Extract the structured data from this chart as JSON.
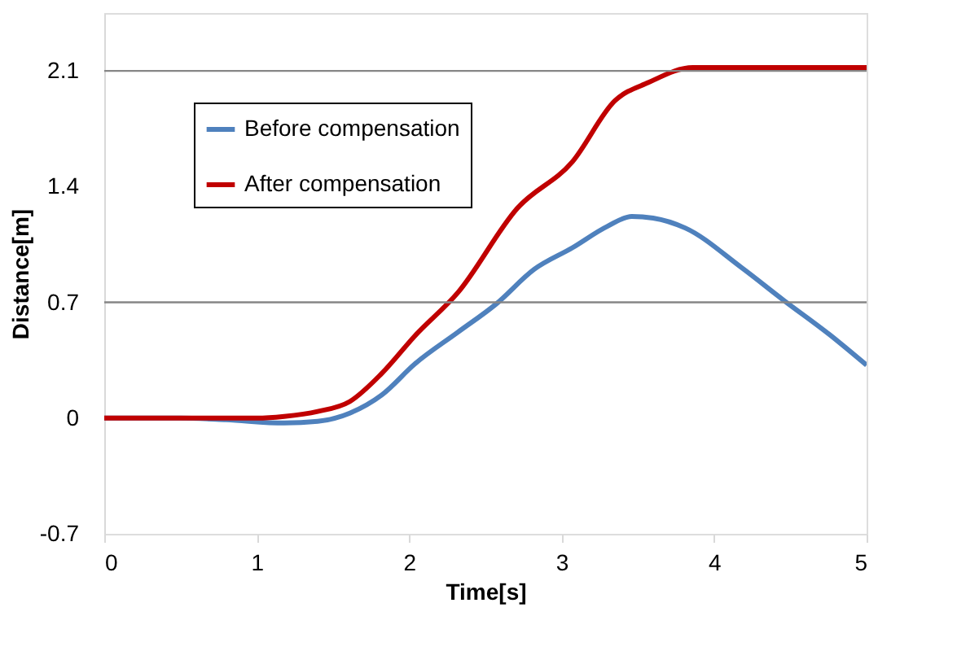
{
  "chart_data": {
    "type": "line",
    "xlabel": "Time[s]",
    "ylabel": "Distance[m]",
    "xlim": [
      0,
      5
    ],
    "xticks": [
      0,
      1,
      2,
      3,
      4,
      5
    ],
    "ylim": [
      -0.7,
      2.45
    ],
    "yticks": [
      -0.7,
      0,
      0.7,
      1.4,
      2.1
    ],
    "legend": "top left",
    "grid": false,
    "line_style": "solid",
    "marker": "none",
    "ref_lines": [
      {
        "axis": "y",
        "value": 0.7,
        "label": null,
        "color": "#868686"
      },
      {
        "axis": "y",
        "value": 2.1,
        "label": null,
        "color": "#868686"
      }
    ],
    "series": [
      {
        "name": "Before compensation",
        "color": "#4f81bd",
        "x": [
          0,
          0.5,
          0.8,
          1.18,
          1.4,
          1.61,
          1.82,
          2.04,
          2.32,
          2.57,
          2.82,
          3.07,
          3.3,
          3.46,
          3.6,
          3.81,
          4.18,
          4.46,
          4.75,
          5
        ],
        "values": [
          0,
          0,
          -0.01,
          -0.03,
          -0.02,
          0.03,
          0.14,
          0.33,
          0.52,
          0.69,
          0.9,
          1.03,
          1.16,
          1.22,
          1.21,
          1.15,
          0.91,
          0.71,
          0.51,
          0.32
        ]
      },
      {
        "name": "After compensation",
        "color": "#c00000",
        "x": [
          0,
          0.5,
          1.0,
          1.18,
          1.4,
          1.61,
          1.82,
          2.04,
          2.32,
          2.71,
          3.07,
          3.35,
          3.57,
          3.86,
          4.5,
          5
        ],
        "values": [
          0,
          0,
          0,
          0.01,
          0.04,
          0.1,
          0.27,
          0.5,
          0.76,
          1.27,
          1.55,
          1.92,
          2.03,
          2.12,
          2.12,
          2.12
        ]
      }
    ]
  }
}
